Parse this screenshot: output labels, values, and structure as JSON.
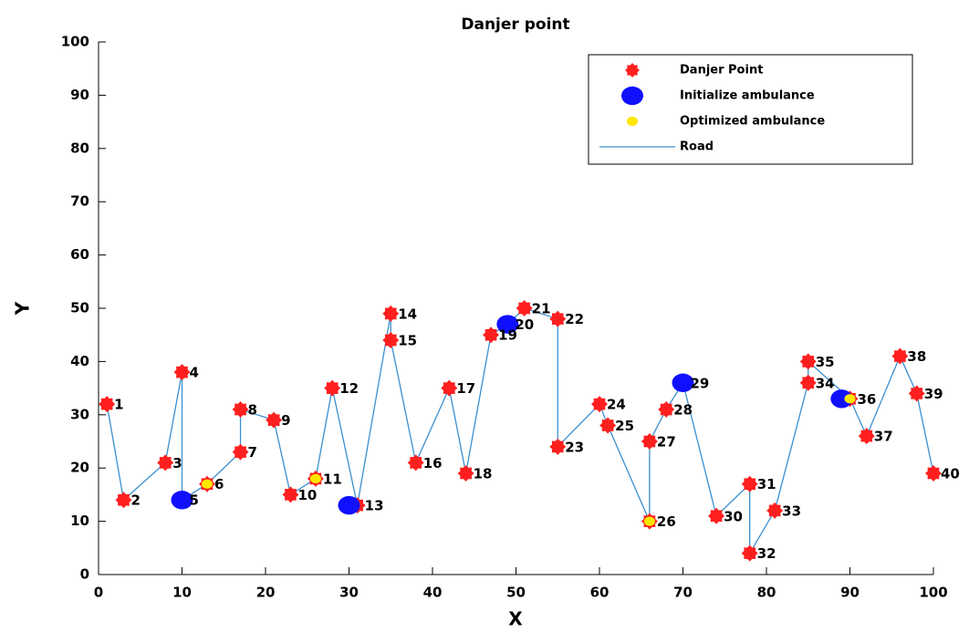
{
  "chart_data": {
    "type": "scatter",
    "title": "Danjer point",
    "xlabel": "X",
    "ylabel": "Y",
    "xlim": [
      0,
      100
    ],
    "ylim": [
      0,
      100
    ],
    "xticks": [
      0,
      10,
      20,
      30,
      40,
      50,
      60,
      70,
      80,
      90,
      100
    ],
    "yticks": [
      0,
      10,
      20,
      30,
      40,
      50,
      60,
      70,
      80,
      90,
      100
    ],
    "legend": "upper right",
    "series": [
      {
        "name": "Danjer Point",
        "color": "#ff1f1f",
        "x": [
          1,
          3,
          8,
          10,
          10,
          13,
          17,
          17,
          21,
          23,
          26,
          28,
          31,
          35,
          35,
          38,
          42,
          44,
          47,
          49,
          51,
          55,
          55,
          60,
          61,
          66,
          66,
          68,
          70,
          74,
          78,
          78,
          81,
          85,
          85,
          90,
          92,
          96,
          98,
          100
        ],
        "y": [
          32,
          14,
          21,
          38,
          14,
          17,
          23,
          31,
          29,
          15,
          18,
          35,
          13,
          49,
          44,
          21,
          35,
          19,
          45,
          47,
          50,
          48,
          24,
          32,
          28,
          10,
          25,
          31,
          36,
          11,
          17,
          4,
          12,
          36,
          40,
          33,
          26,
          41,
          34,
          19
        ],
        "labels": [
          "1",
          "2",
          "3",
          "4",
          "5",
          "6",
          "7",
          "8",
          "9",
          "10",
          "11",
          "12",
          "13",
          "14",
          "15",
          "16",
          "17",
          "18",
          "19",
          "20",
          "21",
          "22",
          "23",
          "24",
          "25",
          "26",
          "27",
          "28",
          "29",
          "30",
          "31",
          "32",
          "33",
          "34",
          "35",
          "36",
          "37",
          "38",
          "39",
          "40"
        ]
      },
      {
        "name": "Initialize ambulance",
        "color": "#1010ff",
        "x": [
          10,
          30,
          49,
          70,
          89
        ],
        "y": [
          14,
          13,
          47,
          36,
          33
        ]
      },
      {
        "name": "Optimized ambulance",
        "color": "#ffe600",
        "x": [
          13,
          26,
          66,
          90
        ],
        "y": [
          17,
          18,
          10,
          33
        ]
      },
      {
        "name": "Road",
        "type": "line",
        "color": "#3a8fd0"
      }
    ]
  }
}
